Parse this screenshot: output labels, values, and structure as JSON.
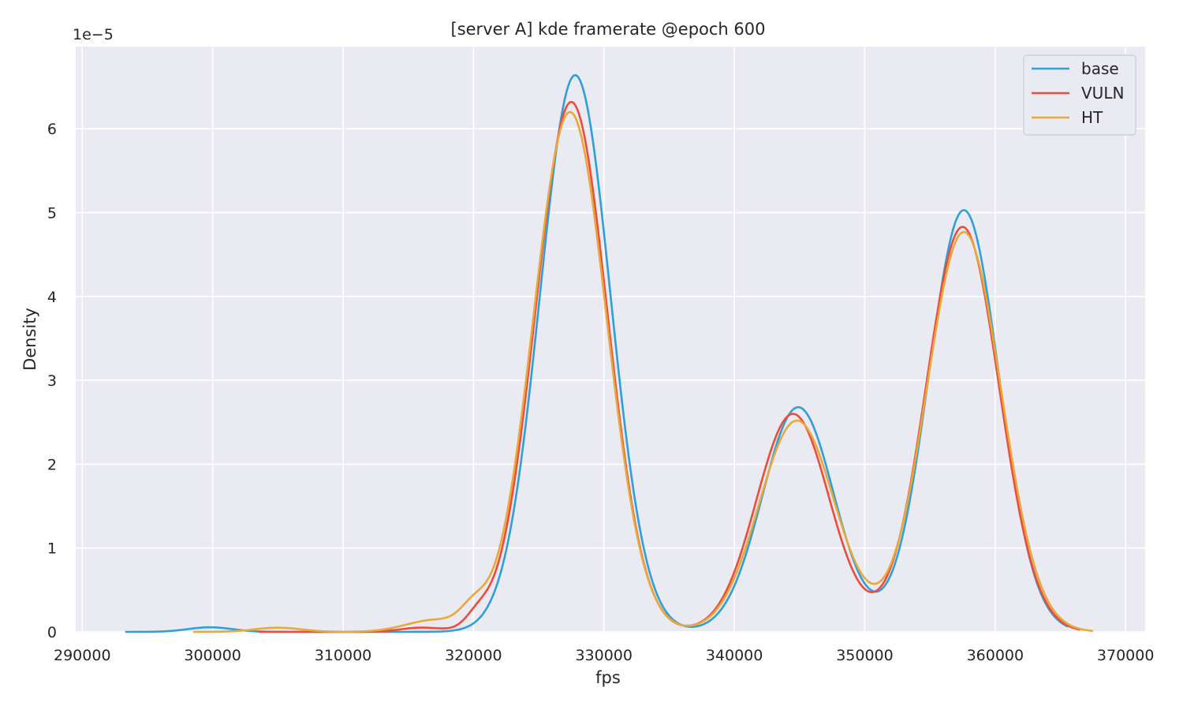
{
  "chart_data": {
    "type": "line",
    "title": "[server A] kde framerate @epoch 600",
    "xlabel": "fps",
    "ylabel": "Density",
    "y_offset_text": "1e−5",
    "y_scale": 1e-05,
    "xlim": [
      289500,
      371500
    ],
    "ylim": [
      0,
      6.98
    ],
    "xticks": [
      290000,
      300000,
      310000,
      320000,
      330000,
      340000,
      350000,
      360000,
      370000
    ],
    "yticks": [
      0,
      1,
      2,
      3,
      4,
      5,
      6
    ],
    "grid": true,
    "background": "#eaeaf2",
    "legend_position": "top-right",
    "series": [
      {
        "name": "base",
        "color": "#2e9fd8",
        "x_range": [
          293300,
          365600
        ],
        "components": [
          {
            "a": 0.055,
            "m": 299800,
            "s": 1700
          },
          {
            "a": 6.64,
            "m": 327800,
            "s": 2700
          },
          {
            "a": 2.68,
            "m": 344900,
            "s": 2750
          },
          {
            "a": 5.03,
            "m": 357600,
            "s": 2700
          }
        ]
      },
      {
        "name": "VULN",
        "color": "#f04a3a",
        "x_range": [
          303500,
          366500
        ],
        "components": [
          {
            "a": 0.05,
            "m": 316000,
            "s": 1600
          },
          {
            "a": 0.14,
            "m": 320300,
            "s": 900
          },
          {
            "a": 6.32,
            "m": 327500,
            "s": 2750
          },
          {
            "a": 2.6,
            "m": 344500,
            "s": 2800
          },
          {
            "a": 4.83,
            "m": 357500,
            "s": 2800
          }
        ]
      },
      {
        "name": "HT",
        "color": "#e8a93a",
        "x_range": [
          298500,
          367500
        ],
        "components": [
          {
            "a": 0.05,
            "m": 305000,
            "s": 1800
          },
          {
            "a": 0.14,
            "m": 317000,
            "s": 2200
          },
          {
            "a": 0.2,
            "m": 320000,
            "s": 1000
          },
          {
            "a": 6.2,
            "m": 327400,
            "s": 2800
          },
          {
            "a": 2.52,
            "m": 344800,
            "s": 2900
          },
          {
            "a": 4.77,
            "m": 357600,
            "s": 2850
          }
        ]
      }
    ]
  }
}
